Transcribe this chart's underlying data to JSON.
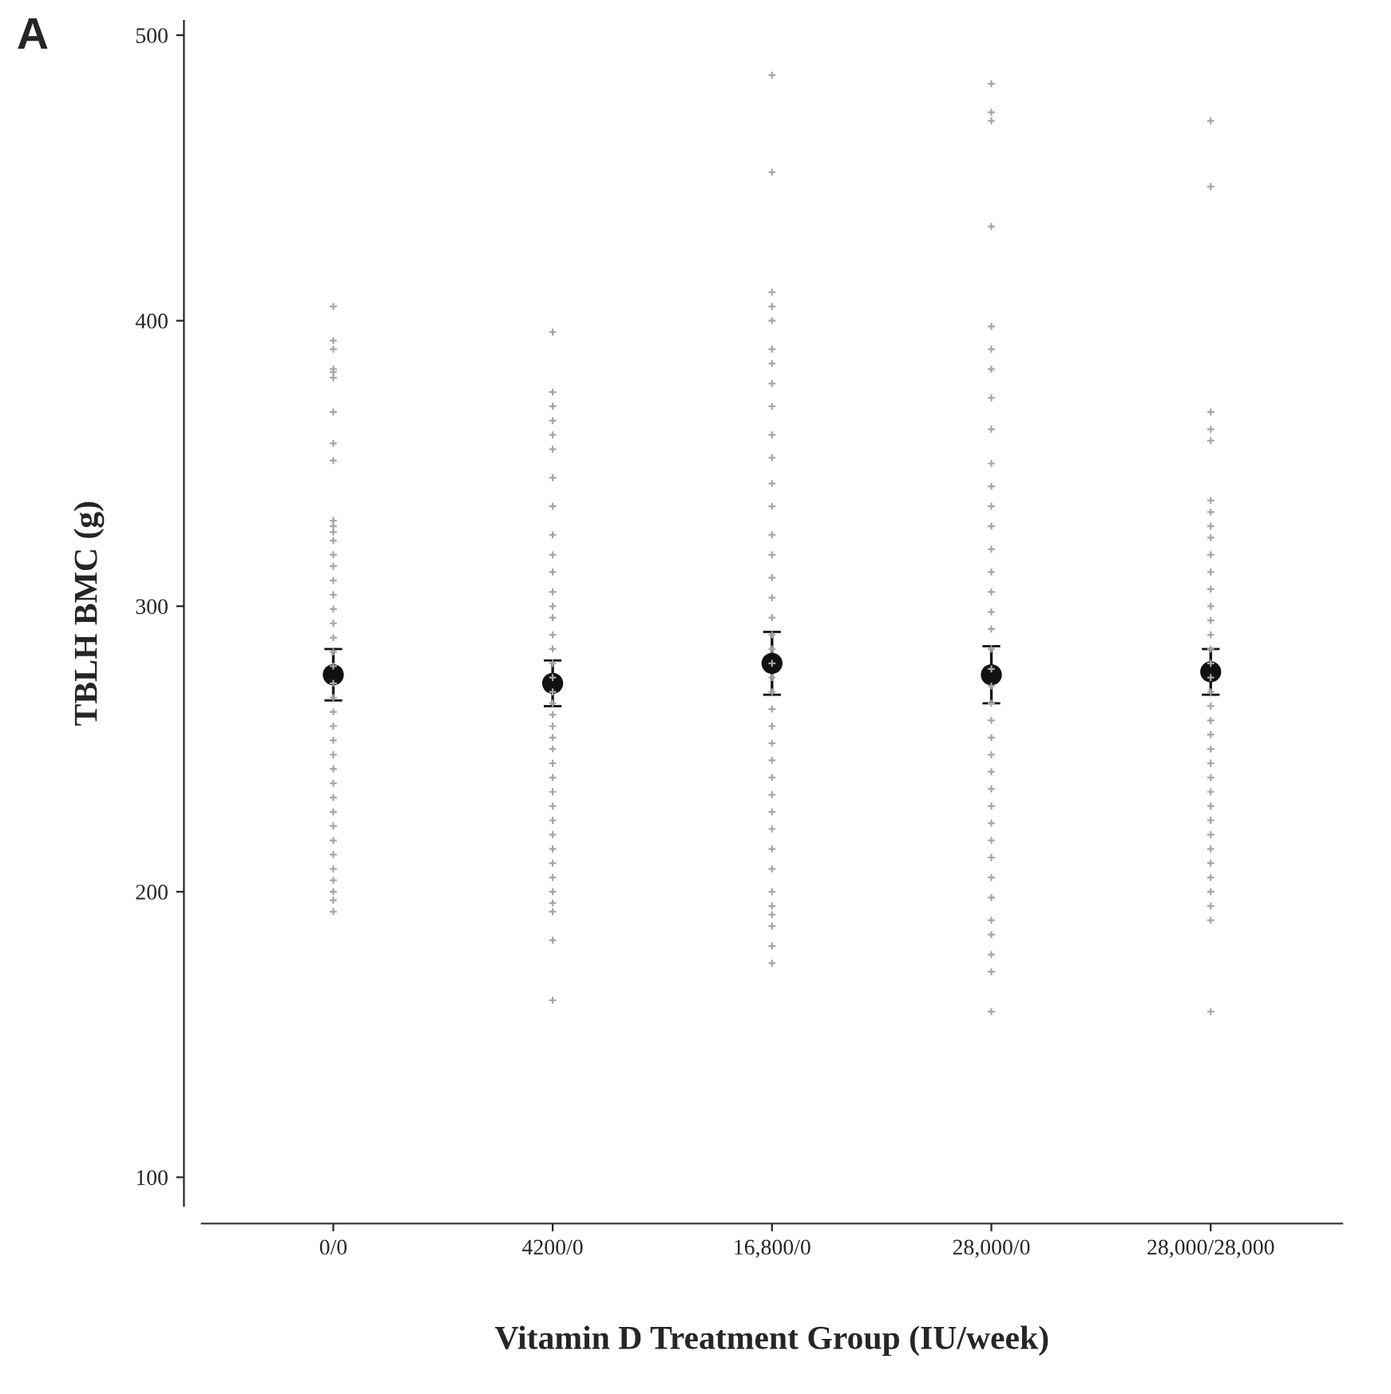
{
  "chart_data": {
    "type": "scatter",
    "xlabel": "Vitamin D Treatment Group (IU/week)",
    "ylabel": "TBLH BMC (g)",
    "categories": [
      "0/0",
      "4200/0",
      "16,800/0",
      "28,000/0",
      "28,000/28,000"
    ],
    "ylim": [
      90,
      505
    ],
    "yticks": [
      100,
      200,
      300,
      400,
      500
    ],
    "grid": false,
    "legend": false,
    "annotations": [
      "A"
    ],
    "series": [
      {
        "marker": "cross",
        "color": "#a6a6a6",
        "x": [
          "0/0",
          "0/0",
          "0/0",
          "0/0",
          "0/0",
          "0/0",
          "0/0",
          "0/0",
          "0/0",
          "0/0",
          "0/0",
          "0/0",
          "0/0",
          "0/0",
          "0/0",
          "0/0",
          "0/0",
          "0/0",
          "0/0",
          "0/0",
          "0/0",
          "0/0",
          "0/0",
          "0/0",
          "0/0",
          "0/0",
          "0/0",
          "0/0",
          "0/0",
          "0/0",
          "0/0",
          "0/0",
          "0/0",
          "0/0",
          "0/0",
          "0/0",
          "0/0",
          "0/0",
          "0/0",
          "0/0"
        ],
        "values": [
          405,
          393,
          390,
          383,
          382,
          380,
          368,
          357,
          351,
          330,
          328,
          326,
          323,
          318,
          314,
          309,
          304,
          299,
          294,
          289,
          284,
          279,
          273,
          268,
          263,
          258,
          253,
          248,
          243,
          238,
          233,
          228,
          223,
          218,
          213,
          208,
          204,
          200,
          197,
          193
        ]
      },
      {
        "marker": "cross",
        "color": "#a6a6a6",
        "x": [
          "4200/0",
          "4200/0",
          "4200/0",
          "4200/0",
          "4200/0",
          "4200/0",
          "4200/0",
          "4200/0",
          "4200/0",
          "4200/0",
          "4200/0",
          "4200/0",
          "4200/0",
          "4200/0",
          "4200/0",
          "4200/0",
          "4200/0",
          "4200/0",
          "4200/0",
          "4200/0",
          "4200/0",
          "4200/0",
          "4200/0",
          "4200/0",
          "4200/0",
          "4200/0",
          "4200/0",
          "4200/0",
          "4200/0",
          "4200/0",
          "4200/0",
          "4200/0",
          "4200/0",
          "4200/0",
          "4200/0",
          "4200/0",
          "4200/0",
          "4200/0"
        ],
        "values": [
          396,
          375,
          370,
          365,
          360,
          355,
          345,
          335,
          325,
          318,
          312,
          305,
          300,
          296,
          290,
          285,
          280,
          275,
          270,
          266,
          262,
          258,
          254,
          250,
          245,
          240,
          235,
          230,
          225,
          220,
          215,
          210,
          205,
          200,
          196,
          193,
          183,
          162
        ]
      },
      {
        "marker": "cross",
        "color": "#a6a6a6",
        "x": [
          "16,800/0",
          "16,800/0",
          "16,800/0",
          "16,800/0",
          "16,800/0",
          "16,800/0",
          "16,800/0",
          "16,800/0",
          "16,800/0",
          "16,800/0",
          "16,800/0",
          "16,800/0",
          "16,800/0",
          "16,800/0",
          "16,800/0",
          "16,800/0",
          "16,800/0",
          "16,800/0",
          "16,800/0",
          "16,800/0",
          "16,800/0",
          "16,800/0",
          "16,800/0",
          "16,800/0",
          "16,800/0",
          "16,800/0",
          "16,800/0",
          "16,800/0",
          "16,800/0",
          "16,800/0",
          "16,800/0",
          "16,800/0",
          "16,800/0",
          "16,800/0",
          "16,800/0",
          "16,800/0",
          "16,800/0",
          "16,800/0",
          "16,800/0"
        ],
        "values": [
          486,
          452,
          410,
          405,
          400,
          390,
          385,
          378,
          370,
          360,
          352,
          343,
          335,
          325,
          318,
          310,
          303,
          296,
          290,
          285,
          280,
          275,
          270,
          264,
          258,
          252,
          246,
          240,
          234,
          228,
          222,
          215,
          208,
          200,
          195,
          192,
          188,
          181,
          175
        ]
      },
      {
        "marker": "cross",
        "color": "#a6a6a6",
        "x": [
          "28,000/0",
          "28,000/0",
          "28,000/0",
          "28,000/0",
          "28,000/0",
          "28,000/0",
          "28,000/0",
          "28,000/0",
          "28,000/0",
          "28,000/0",
          "28,000/0",
          "28,000/0",
          "28,000/0",
          "28,000/0",
          "28,000/0",
          "28,000/0",
          "28,000/0",
          "28,000/0",
          "28,000/0",
          "28,000/0",
          "28,000/0",
          "28,000/0",
          "28,000/0",
          "28,000/0",
          "28,000/0",
          "28,000/0",
          "28,000/0",
          "28,000/0",
          "28,000/0",
          "28,000/0",
          "28,000/0",
          "28,000/0",
          "28,000/0",
          "28,000/0",
          "28,000/0",
          "28,000/0",
          "28,000/0",
          "28,000/0"
        ],
        "values": [
          483,
          473,
          470,
          433,
          398,
          390,
          383,
          373,
          362,
          350,
          342,
          335,
          328,
          320,
          312,
          305,
          298,
          292,
          285,
          278,
          272,
          266,
          260,
          254,
          248,
          242,
          236,
          230,
          224,
          218,
          212,
          205,
          198,
          190,
          185,
          178,
          172,
          158
        ]
      },
      {
        "marker": "cross",
        "color": "#a6a6a6",
        "x": [
          "28,000/28,000",
          "28,000/28,000",
          "28,000/28,000",
          "28,000/28,000",
          "28,000/28,000",
          "28,000/28,000",
          "28,000/28,000",
          "28,000/28,000",
          "28,000/28,000",
          "28,000/28,000",
          "28,000/28,000",
          "28,000/28,000",
          "28,000/28,000",
          "28,000/28,000",
          "28,000/28,000",
          "28,000/28,000",
          "28,000/28,000",
          "28,000/28,000",
          "28,000/28,000",
          "28,000/28,000",
          "28,000/28,000",
          "28,000/28,000",
          "28,000/28,000",
          "28,000/28,000",
          "28,000/28,000",
          "28,000/28,000",
          "28,000/28,000",
          "28,000/28,000",
          "28,000/28,000",
          "28,000/28,000",
          "28,000/28,000",
          "28,000/28,000",
          "28,000/28,000",
          "28,000/28,000",
          "28,000/28,000",
          "28,000/28,000"
        ],
        "values": [
          470,
          447,
          368,
          362,
          358,
          337,
          333,
          328,
          324,
          318,
          312,
          306,
          300,
          295,
          290,
          285,
          280,
          275,
          270,
          265,
          260,
          255,
          250,
          245,
          240,
          235,
          230,
          225,
          220,
          215,
          210,
          205,
          200,
          195,
          190,
          158
        ]
      },
      {
        "marker": "circle",
        "color": "#111111",
        "values": [
          276,
          273,
          280,
          276,
          277
        ],
        "errors": [
          9,
          8,
          11,
          10,
          8
        ]
      }
    ]
  }
}
